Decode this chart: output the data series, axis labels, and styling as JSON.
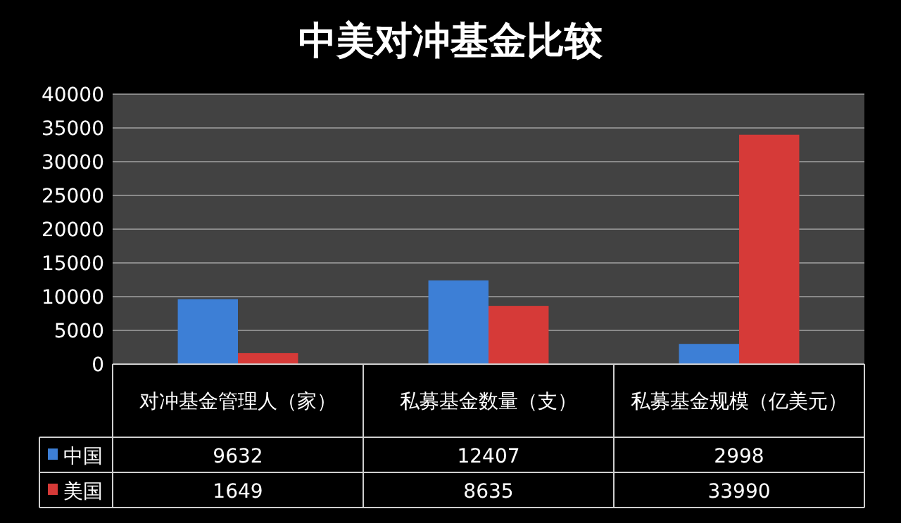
{
  "chart_data": {
    "type": "bar",
    "title": "中美对冲基金比较",
    "categories": [
      "对冲基金管理人（家）",
      "私募基金数量（支）",
      "私募基金规模（亿美元）"
    ],
    "series": [
      {
        "name": "中国",
        "color": "#3d7fd6",
        "values": [
          9632,
          12407,
          2998
        ]
      },
      {
        "name": "美国",
        "color": "#d63a38",
        "values": [
          1649,
          8635,
          33990
        ]
      }
    ],
    "ylim": [
      0,
      40000
    ],
    "yticks": [
      0,
      5000,
      10000,
      15000,
      20000,
      25000,
      30000,
      35000,
      40000
    ],
    "grid": "y",
    "legend": "bottom left",
    "data_labels": true
  }
}
